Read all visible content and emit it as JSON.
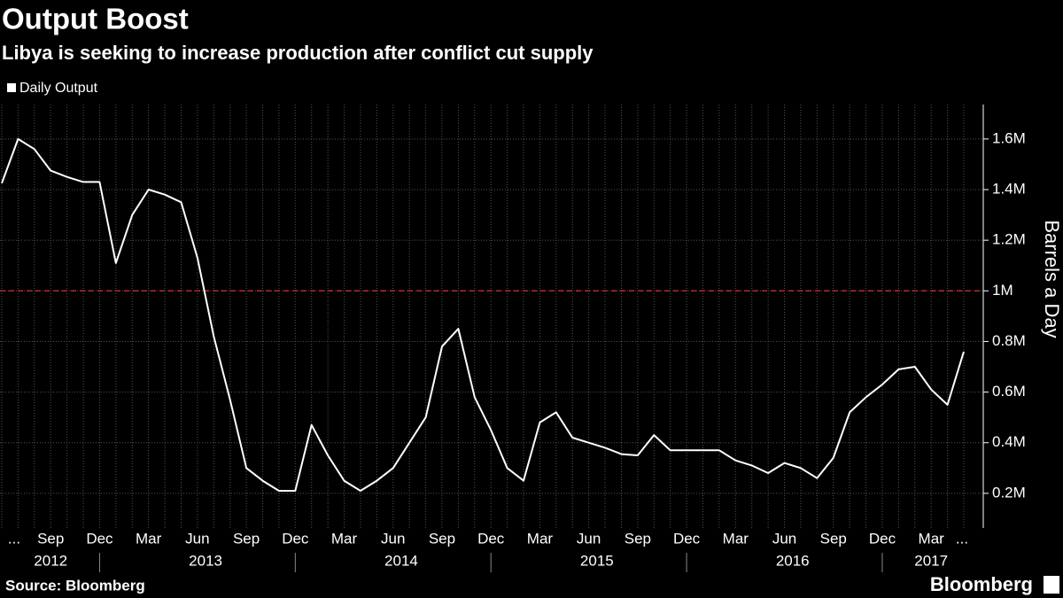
{
  "chart_data": {
    "type": "line",
    "title": "Output Boost",
    "subtitle": "Libya is seeking to increase production after conflict cut supply",
    "y_label": "Barrels a Day",
    "source": "Source: Bloomberg",
    "brand": "Bloomberg",
    "x": [
      "2012-06",
      "2012-07",
      "2012-08",
      "2012-09",
      "2012-10",
      "2012-11",
      "2012-12",
      "2013-01",
      "2013-02",
      "2013-03",
      "2013-04",
      "2013-05",
      "2013-06",
      "2013-07",
      "2013-08",
      "2013-09",
      "2013-10",
      "2013-11",
      "2013-12",
      "2014-01",
      "2014-02",
      "2014-03",
      "2014-04",
      "2014-05",
      "2014-06",
      "2014-07",
      "2014-08",
      "2014-09",
      "2014-10",
      "2014-11",
      "2014-12",
      "2015-01",
      "2015-02",
      "2015-03",
      "2015-04",
      "2015-05",
      "2015-06",
      "2015-07",
      "2015-08",
      "2015-09",
      "2015-10",
      "2015-11",
      "2015-12",
      "2016-01",
      "2016-02",
      "2016-03",
      "2016-04",
      "2016-05",
      "2016-06",
      "2016-07",
      "2016-08",
      "2016-09",
      "2016-10",
      "2016-11",
      "2016-12",
      "2017-01",
      "2017-02",
      "2017-03",
      "2017-04",
      "2017-05"
    ],
    "series": [
      {
        "name": "Daily Output",
        "color": "#ffffff",
        "values": [
          1.425,
          1.6,
          1.56,
          1.475,
          1.45,
          1.43,
          1.43,
          1.11,
          1.3,
          1.4,
          1.38,
          1.35,
          1.13,
          0.82,
          0.57,
          0.3,
          0.25,
          0.21,
          0.21,
          0.47,
          0.35,
          0.25,
          0.21,
          0.25,
          0.3,
          0.4,
          0.5,
          0.78,
          0.85,
          0.58,
          0.45,
          0.3,
          0.25,
          0.48,
          0.52,
          0.42,
          0.4,
          0.38,
          0.355,
          0.35,
          0.43,
          0.37,
          0.37,
          0.37,
          0.37,
          0.33,
          0.31,
          0.28,
          0.32,
          0.3,
          0.26,
          0.34,
          0.52,
          0.58,
          0.63,
          0.69,
          0.7,
          0.61,
          0.55,
          0.76
        ]
      }
    ],
    "ylim": [
      0.063,
      1.736
    ],
    "yticks": [
      {
        "value": 0.2,
        "label": "0.2M"
      },
      {
        "value": 0.4,
        "label": "0.4M"
      },
      {
        "value": 0.6,
        "label": "0.6M"
      },
      {
        "value": 0.8,
        "label": "0.8M"
      },
      {
        "value": 1,
        "label": "1M"
      },
      {
        "value": 1.2,
        "label": "1.2M"
      },
      {
        "value": 1.4,
        "label": "1.4M"
      },
      {
        "value": 1.6,
        "label": "1.6M"
      }
    ],
    "xticks": [
      {
        "value": "2012-06",
        "label": "..."
      },
      {
        "value": "2012-09",
        "label": "Sep"
      },
      {
        "value": "2012-12",
        "label": "Dec"
      },
      {
        "value": "2013-03",
        "label": "Mar"
      },
      {
        "value": "2013-06",
        "label": "Jun"
      },
      {
        "value": "2013-09",
        "label": "Sep"
      },
      {
        "value": "2013-12",
        "label": "Dec"
      },
      {
        "value": "2014-03",
        "label": "Mar"
      },
      {
        "value": "2014-06",
        "label": "Jun"
      },
      {
        "value": "2014-09",
        "label": "Sep"
      },
      {
        "value": "2014-12",
        "label": "Dec"
      },
      {
        "value": "2015-03",
        "label": "Mar"
      },
      {
        "value": "2015-06",
        "label": "Jun"
      },
      {
        "value": "2015-09",
        "label": "Sep"
      },
      {
        "value": "2015-12",
        "label": "Dec"
      },
      {
        "value": "2016-03",
        "label": "Mar"
      },
      {
        "value": "2016-06",
        "label": "Jun"
      },
      {
        "value": "2016-09",
        "label": "Sep"
      },
      {
        "value": "2016-12",
        "label": "Dec"
      },
      {
        "value": "2017-03",
        "label": "Mar"
      },
      {
        "value": "2017-05",
        "label": "..."
      }
    ],
    "year_labels": [
      "2012",
      "2013",
      "2014",
      "2015",
      "2016",
      "2017"
    ],
    "reference_line": {
      "value": 1,
      "color": "#d9302c"
    },
    "grid": true,
    "legend": "top-left"
  }
}
